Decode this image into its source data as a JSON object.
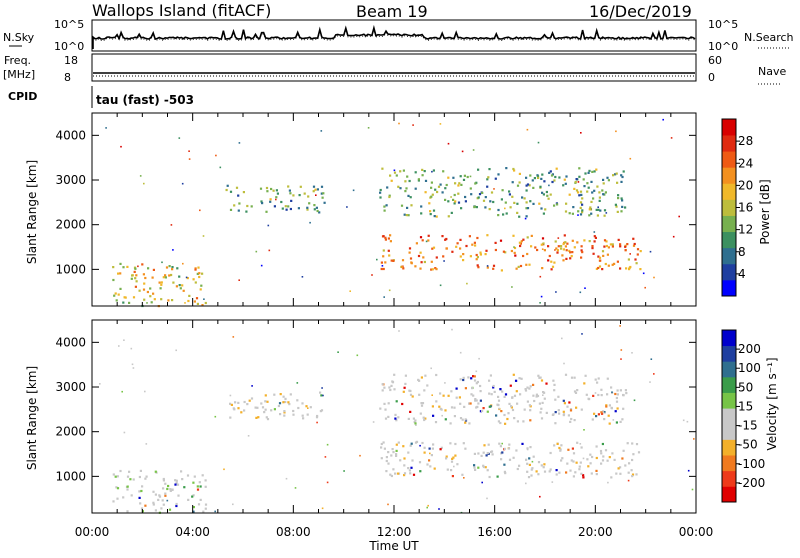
{
  "header": {
    "station": "Wallops Island (fitACF)",
    "beam": "Beam 19",
    "date": "16/Dec/2019"
  },
  "strips": {
    "nsky_label": "N.Sky",
    "nsky_ticks": [
      "10^5",
      "10^0"
    ],
    "nsearch_label": "N.Search",
    "nsearch_ticks": [
      "10^5",
      "10^0"
    ],
    "freq_label": "Freq.",
    "freq_unit": "[MHz]",
    "freq_ticks": [
      "18",
      "8"
    ],
    "nave_label": "Nave",
    "nave_ticks": [
      "60",
      "0"
    ],
    "cpid_label": "CPID",
    "cpid_value": "tau (fast) -503"
  },
  "chart_data": [
    {
      "type": "heatmap",
      "ylabel": "Slant Range [km]",
      "xlabel": "Time UT",
      "x_ticks": [
        "00:00",
        "04:00",
        "08:00",
        "12:00",
        "16:00",
        "20:00",
        "00:00"
      ],
      "xlim_hours": [
        0,
        24
      ],
      "ylim": [
        180,
        4500
      ],
      "y_ticks": [
        1000,
        2000,
        3000,
        4000
      ],
      "colorbar": {
        "label": "Power [dB]",
        "ticks": [
          "28",
          "24",
          "20",
          "16",
          "12",
          "8",
          "4"
        ],
        "colors": [
          "#0000ff",
          "#1f3fa0",
          "#2f6f8f",
          "#3c9060",
          "#77b04f",
          "#bdbd3c",
          "#f0b82a",
          "#f3901f",
          "#ee5a14",
          "#e02a10",
          "#d80000"
        ]
      },
      "regions": [
        {
          "t": [
            0.8,
            4.5
          ],
          "r": [
            200,
            1150
          ],
          "level": 0.55
        },
        {
          "t": [
            5.3,
            9.3
          ],
          "r": [
            2300,
            2900
          ],
          "level": 0.35
        },
        {
          "t": [
            11.4,
            21.8
          ],
          "r": [
            1000,
            1800
          ],
          "level": 0.75
        },
        {
          "t": [
            11.4,
            21.2
          ],
          "r": [
            2200,
            3300
          ],
          "level": 0.35
        }
      ]
    },
    {
      "type": "heatmap",
      "ylabel": "Slant Range [km]",
      "xlabel": "Time UT",
      "x_ticks": [
        "00:00",
        "04:00",
        "08:00",
        "12:00",
        "16:00",
        "20:00",
        "00:00"
      ],
      "xlim_hours": [
        0,
        24
      ],
      "ylim": [
        180,
        4500
      ],
      "y_ticks": [
        1000,
        2000,
        3000,
        4000
      ],
      "colorbar": {
        "label": "Velocity [m s⁻¹]",
        "ticks": [
          "200",
          "100",
          "50",
          "15",
          "-15",
          "-50",
          "-100",
          "-200"
        ],
        "colors": [
          "#e00000",
          "#ee3a1a",
          "#f07a1f",
          "#f3b02a",
          "#c8c8c8",
          "#c8c8c8",
          "#77c447",
          "#3a9c4a",
          "#2f6f8f",
          "#1f3fa0",
          "#0000cc"
        ]
      },
      "regions": [
        {
          "t": [
            0.8,
            4.5
          ],
          "r": [
            200,
            1150
          ],
          "level": 0.62
        },
        {
          "t": [
            5.3,
            9.3
          ],
          "r": [
            2300,
            2900
          ],
          "level": 0.5
        },
        {
          "t": [
            11.4,
            21.8
          ],
          "r": [
            1000,
            1800
          ],
          "level": 0.5
        },
        {
          "t": [
            11.4,
            21.2
          ],
          "r": [
            2200,
            3300
          ],
          "level": 0.5
        }
      ]
    }
  ]
}
